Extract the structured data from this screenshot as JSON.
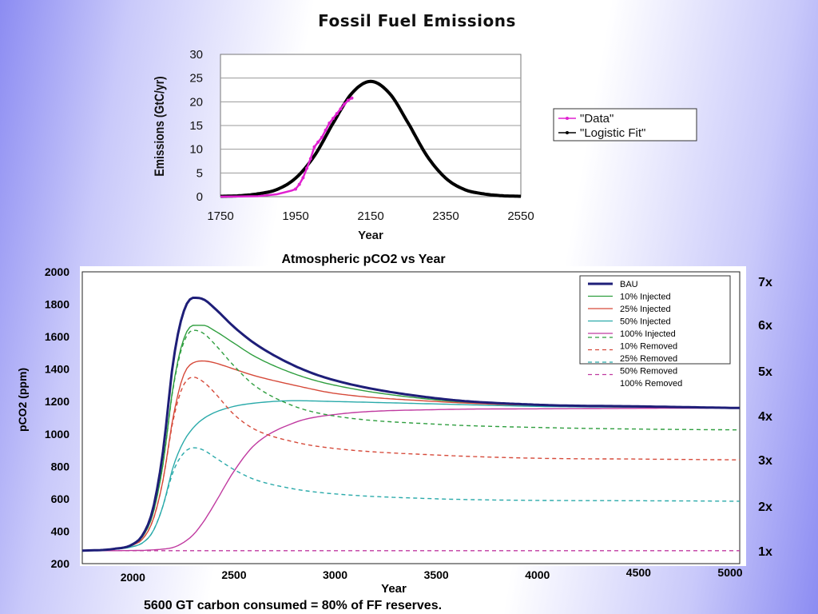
{
  "chart_data": [
    {
      "type": "line",
      "title": "Fossil Fuel Emissions",
      "xlabel": "Year",
      "ylabel": "Emissions (GtC/yr)",
      "xlim": [
        1750,
        2550
      ],
      "ylim": [
        0,
        30
      ],
      "x_ticks": [
        1750,
        1950,
        2150,
        2350,
        2550
      ],
      "y_ticks": [
        0,
        5,
        10,
        15,
        20,
        25,
        30
      ],
      "grid": true,
      "legend_position": "right",
      "series": [
        {
          "name": "\"Data\"",
          "color": "#e020d0",
          "x": [
            1750,
            1800,
            1850,
            1900,
            1920,
            1940,
            1950,
            1960,
            1970,
            1980,
            1990,
            2000,
            2010,
            2020,
            2030,
            2040,
            2050,
            2060,
            2070,
            2080,
            2090,
            2100
          ],
          "y": [
            0,
            0.05,
            0.1,
            0.5,
            0.9,
            1.3,
            1.6,
            2.6,
            4.0,
            6.0,
            8.0,
            10.5,
            11.5,
            12.5,
            14.0,
            15.5,
            16.5,
            17.5,
            18.5,
            19.5,
            20.3,
            20.8
          ]
        },
        {
          "name": "\"Logistic Fit\"",
          "color": "#000000",
          "x": [
            1750,
            1800,
            1850,
            1900,
            1950,
            2000,
            2050,
            2100,
            2150,
            2200,
            2250,
            2300,
            2350,
            2400,
            2450,
            2500,
            2550
          ],
          "y": [
            0.08,
            0.2,
            0.6,
            1.5,
            3.9,
            8.6,
            15.5,
            21.8,
            24.3,
            21.8,
            15.5,
            8.6,
            3.9,
            1.5,
            0.6,
            0.2,
            0.08
          ]
        }
      ]
    },
    {
      "type": "line",
      "title": "Atmospheric pCO2 vs Year",
      "xlabel": "Year",
      "ylabel": "pCO2 (ppm)",
      "xlim": [
        1750,
        5000
      ],
      "ylim": [
        200,
        2000
      ],
      "x_ticks": [
        2000,
        2500,
        3000,
        3500,
        4000,
        4500,
        5000
      ],
      "y_ticks": [
        200,
        400,
        600,
        800,
        1000,
        1200,
        1400,
        1600,
        1800,
        2000
      ],
      "grid": false,
      "legend_position": "top-right",
      "series": [
        {
          "name": "BAU",
          "color": "#1e1e78",
          "dash": "solid",
          "x": [
            1750,
            1900,
            2000,
            2050,
            2100,
            2150,
            2200,
            2250,
            2300,
            2350,
            2400,
            2500,
            2600,
            2800,
            3000,
            3500,
            4000,
            4500,
            5000
          ],
          "y": [
            280,
            290,
            320,
            380,
            540,
            900,
            1450,
            1750,
            1840,
            1830,
            1780,
            1660,
            1560,
            1420,
            1330,
            1220,
            1180,
            1170,
            1160
          ]
        },
        {
          "name": "10% Injected",
          "color": "#2e9e3e",
          "dash": "solid",
          "x": [
            1750,
            1900,
            2000,
            2050,
            2100,
            2150,
            2200,
            2250,
            2300,
            2350,
            2400,
            2500,
            2600,
            2800,
            3000,
            3500,
            4000,
            4500,
            5000
          ],
          "y": [
            280,
            290,
            318,
            370,
            510,
            820,
            1300,
            1580,
            1670,
            1670,
            1640,
            1560,
            1480,
            1370,
            1300,
            1210,
            1175,
            1165,
            1160
          ]
        },
        {
          "name": "25% Injected",
          "color": "#d64a3a",
          "dash": "solid",
          "x": [
            1750,
            1900,
            2000,
            2050,
            2100,
            2150,
            2200,
            2250,
            2300,
            2350,
            2400,
            2500,
            2600,
            2800,
            3000,
            3500,
            4000,
            4500,
            5000
          ],
          "y": [
            280,
            289,
            315,
            355,
            470,
            720,
            1110,
            1360,
            1440,
            1450,
            1440,
            1400,
            1360,
            1300,
            1250,
            1200,
            1175,
            1165,
            1160
          ]
        },
        {
          "name": "50% Injected",
          "color": "#2aaaaa",
          "dash": "solid",
          "x": [
            1750,
            1900,
            2000,
            2050,
            2100,
            2150,
            2200,
            2250,
            2300,
            2350,
            2400,
            2500,
            2600,
            2800,
            3000,
            3500,
            4000,
            4500,
            5000
          ],
          "y": [
            280,
            288,
            305,
            330,
            400,
            560,
            800,
            950,
            1040,
            1095,
            1130,
            1170,
            1190,
            1205,
            1200,
            1185,
            1170,
            1165,
            1160
          ]
        },
        {
          "name": "100% Injected",
          "color": "#c03aa0",
          "dash": "solid",
          "x": [
            1750,
            1900,
            2000,
            2050,
            2100,
            2150,
            2200,
            2250,
            2300,
            2350,
            2400,
            2500,
            2600,
            2800,
            3000,
            3500,
            4000,
            4500,
            5000
          ],
          "y": [
            280,
            280,
            281,
            282,
            285,
            290,
            300,
            330,
            380,
            460,
            560,
            770,
            930,
            1070,
            1120,
            1150,
            1155,
            1158,
            1160
          ]
        },
        {
          "name": "10% Removed",
          "color": "#2e9e3e",
          "dash": "dashed",
          "x": [
            1750,
            1900,
            2000,
            2050,
            2100,
            2150,
            2200,
            2250,
            2300,
            2350,
            2400,
            2500,
            2600,
            2800,
            3000,
            3500,
            4000,
            4500,
            5000
          ],
          "y": [
            280,
            290,
            318,
            370,
            510,
            820,
            1290,
            1560,
            1640,
            1620,
            1560,
            1420,
            1300,
            1170,
            1110,
            1060,
            1040,
            1030,
            1025
          ]
        },
        {
          "name": "25% Removed",
          "color": "#d64a3a",
          "dash": "dashed",
          "x": [
            1750,
            1900,
            2000,
            2050,
            2100,
            2150,
            2200,
            2250,
            2300,
            2350,
            2400,
            2500,
            2600,
            2800,
            3000,
            3500,
            4000,
            4500,
            5000
          ],
          "y": [
            280,
            289,
            315,
            355,
            470,
            720,
            1090,
            1300,
            1350,
            1320,
            1260,
            1120,
            1030,
            950,
            910,
            870,
            850,
            845,
            840
          ]
        },
        {
          "name": "50% Removed",
          "color": "#2aaaaa",
          "dash": "dashed",
          "x": [
            1750,
            1900,
            2000,
            2050,
            2100,
            2150,
            2200,
            2250,
            2300,
            2350,
            2400,
            2500,
            2600,
            2800,
            3000,
            3500,
            4000,
            4500,
            5000
          ],
          "y": [
            280,
            288,
            305,
            330,
            400,
            560,
            770,
            880,
            915,
            900,
            860,
            780,
            720,
            660,
            630,
            600,
            590,
            588,
            585
          ]
        },
        {
          "name": "100% Removed",
          "color": "#c03aa0",
          "dash": "dashed",
          "x": [
            1750,
            5000
          ],
          "y": [
            280,
            280
          ]
        }
      ]
    }
  ],
  "multipliers": [
    "7x",
    "6x",
    "5x",
    "4x",
    "3x",
    "2x",
    "1x"
  ],
  "caption": "5600 GT carbon consumed = 80% of FF reserves."
}
